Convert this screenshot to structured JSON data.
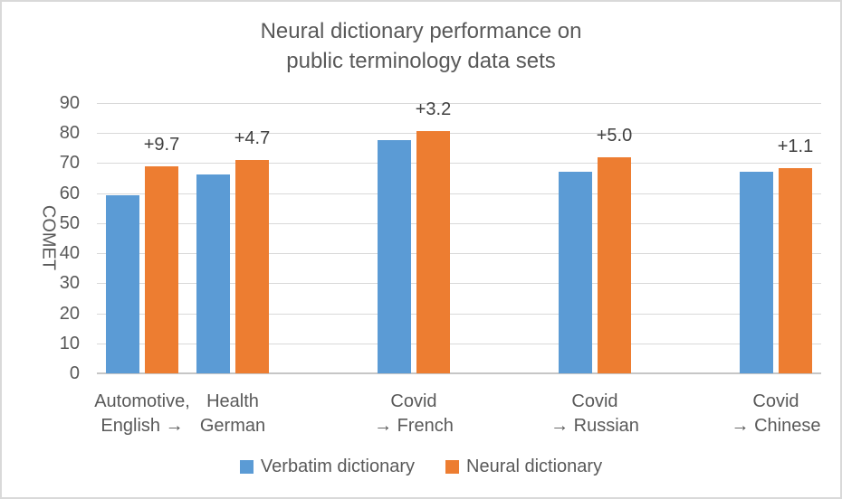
{
  "frame": {
    "background": "#FFFFFF",
    "border_color": "#D9D9D9"
  },
  "chart_data": {
    "type": "bar",
    "title_lines": [
      "Neural dictionary performance on",
      "public terminology data sets"
    ],
    "ylabel": "COMET",
    "ylim": [
      0,
      90
    ],
    "ytick_interval": 10,
    "yticks": [
      90,
      80,
      70,
      60,
      50,
      40,
      30,
      20,
      10,
      0
    ],
    "grid": "horizontal",
    "legend_position": "bottom",
    "num_slots": 8,
    "categories": [
      {
        "label_lines": [
          "Automotive,",
          "English →"
        ],
        "slot": 0
      },
      {
        "label_lines": [
          "Health",
          "German"
        ],
        "slot": 1
      },
      {
        "label_lines": [
          "Covid",
          "→ French"
        ],
        "slot": 3
      },
      {
        "label_lines": [
          "Covid",
          "→ Russian"
        ],
        "slot": 5
      },
      {
        "label_lines": [
          "Covid",
          "→ Chinese"
        ],
        "slot": 7
      }
    ],
    "series": [
      {
        "name": "Verbatim dictionary",
        "color": "#5B9BD5",
        "values": [
          59.2,
          66.3,
          77.6,
          67.0,
          67.1
        ]
      },
      {
        "name": "Neural dictionary",
        "color": "#ED7D31",
        "values": [
          68.9,
          71.0,
          80.8,
          72.0,
          68.2
        ]
      }
    ],
    "annotations": [
      {
        "text": "+9.7",
        "category_index": 0
      },
      {
        "text": "+4.7",
        "category_index": 1
      },
      {
        "text": "+3.2",
        "category_index": 2
      },
      {
        "text": "+5.0",
        "category_index": 3
      },
      {
        "text": "+1.1",
        "category_index": 4
      }
    ],
    "colors": {
      "grid_line": "#D9D9D9",
      "axis_line": "#C6C6C6",
      "text": "#595959",
      "annotation_text": "#404040"
    }
  }
}
